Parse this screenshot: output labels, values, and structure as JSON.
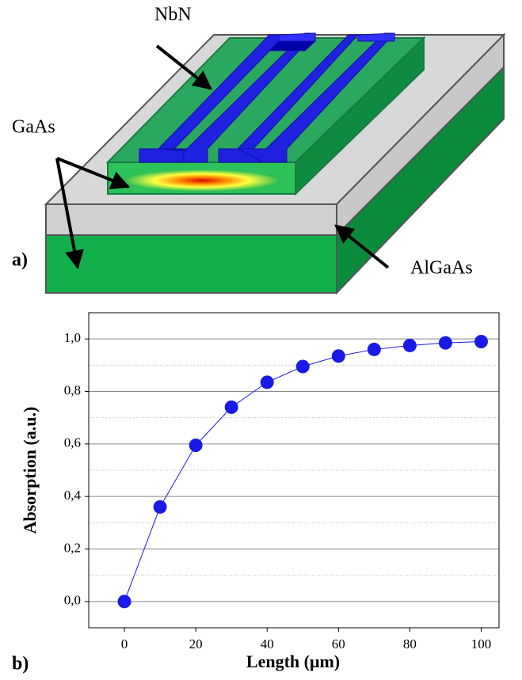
{
  "diagram": {
    "labels": {
      "nbn": "NbN",
      "gaas": "GaAs",
      "algaas": "AlGaAs",
      "panel_a": "a)",
      "panel_b": "b)"
    }
  },
  "chart_data": {
    "type": "line",
    "x_label": "Length (μm)",
    "y_label": "Absorption (a.u.)",
    "x": [
      0,
      10,
      20,
      30,
      40,
      50,
      60,
      70,
      80,
      90,
      100
    ],
    "series": [
      {
        "color": "#1a1ae6",
        "values": [
          0,
          0.36,
          0.595,
          0.74,
          0.835,
          0.895,
          0.935,
          0.96,
          0.975,
          0.985,
          0.99
        ]
      }
    ],
    "xlim": [
      -10,
      105
    ],
    "ylim": [
      -0.1,
      1.1
    ],
    "xticks": [
      0,
      20,
      40,
      60,
      80,
      100
    ],
    "yticks": [
      {
        "value": 0,
        "label": "0,0"
      },
      {
        "value": 0.2,
        "label": "0,2"
      },
      {
        "value": 0.4,
        "label": "0,4"
      },
      {
        "value": 0.6,
        "label": "0,6"
      },
      {
        "value": 0.8,
        "label": "0,8"
      },
      {
        "value": 1,
        "label": "1,0"
      }
    ],
    "minor_yticks": [
      0.1,
      0.3,
      0.5,
      0.7,
      0.9
    ],
    "grid": true
  }
}
